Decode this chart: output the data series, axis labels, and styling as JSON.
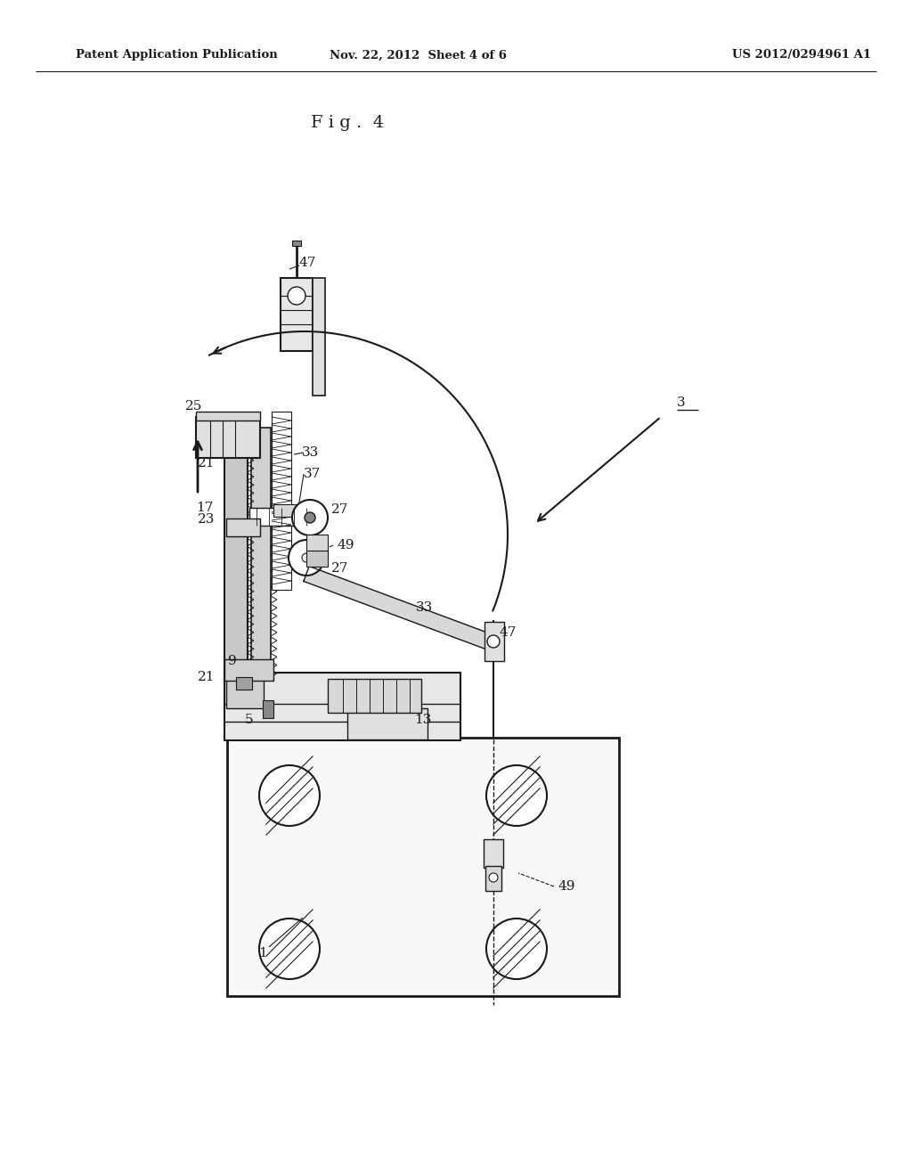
{
  "bg_color": "#ffffff",
  "line_color": "#1a1a1a",
  "header_left": "Patent Application Publication",
  "header_center": "Nov. 22, 2012  Sheet 4 of 6",
  "header_right": "US 2012/0294961 A1",
  "fig_title": "F i g .  4"
}
